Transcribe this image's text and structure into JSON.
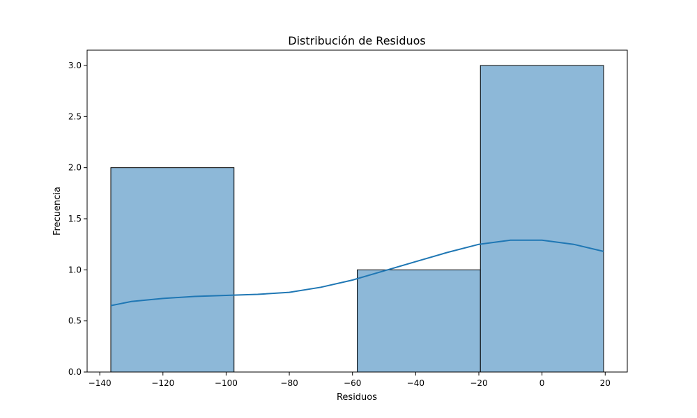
{
  "chart_data": {
    "type": "bar",
    "subtype": "histogram-with-kde",
    "title": "Distribución de Residuos",
    "xlabel": "Residuos",
    "ylabel": "Frecuencia",
    "xlim": [
      -144,
      27
    ],
    "ylim": [
      0,
      3.15
    ],
    "xticks": [
      -140,
      -120,
      -100,
      -80,
      -60,
      -40,
      -20,
      0,
      20
    ],
    "xtick_labels": [
      "−140",
      "−120",
      "−100",
      "−80",
      "−60",
      "−40",
      "−20",
      "0",
      "20"
    ],
    "yticks": [
      0,
      0.5,
      1.0,
      1.5,
      2.0,
      2.5,
      3.0
    ],
    "ytick_labels": [
      "0.0",
      "0.5",
      "1.0",
      "1.5",
      "2.0",
      "2.5",
      "3.0"
    ],
    "bins": [
      {
        "x0": -136.5,
        "x1": -97.5,
        "count": 2
      },
      {
        "x0": -97.5,
        "x1": -58.5,
        "count": 0
      },
      {
        "x0": -58.5,
        "x1": -19.5,
        "count": 1
      },
      {
        "x0": -19.5,
        "x1": 19.5,
        "count": 3
      }
    ],
    "kde": {
      "x": [
        -136.5,
        -130,
        -120,
        -110,
        -100,
        -90,
        -80,
        -70,
        -60,
        -50,
        -40,
        -30,
        -20,
        -10,
        0,
        10,
        19.5
      ],
      "y": [
        0.65,
        0.69,
        0.72,
        0.74,
        0.75,
        0.76,
        0.78,
        0.83,
        0.9,
        0.99,
        1.08,
        1.17,
        1.25,
        1.29,
        1.29,
        1.25,
        1.18
      ]
    },
    "grid": false,
    "colors": {
      "bar_fill": "#8db8d8",
      "bar_edge": "#000000",
      "kde_line": "#1f77b4"
    }
  }
}
